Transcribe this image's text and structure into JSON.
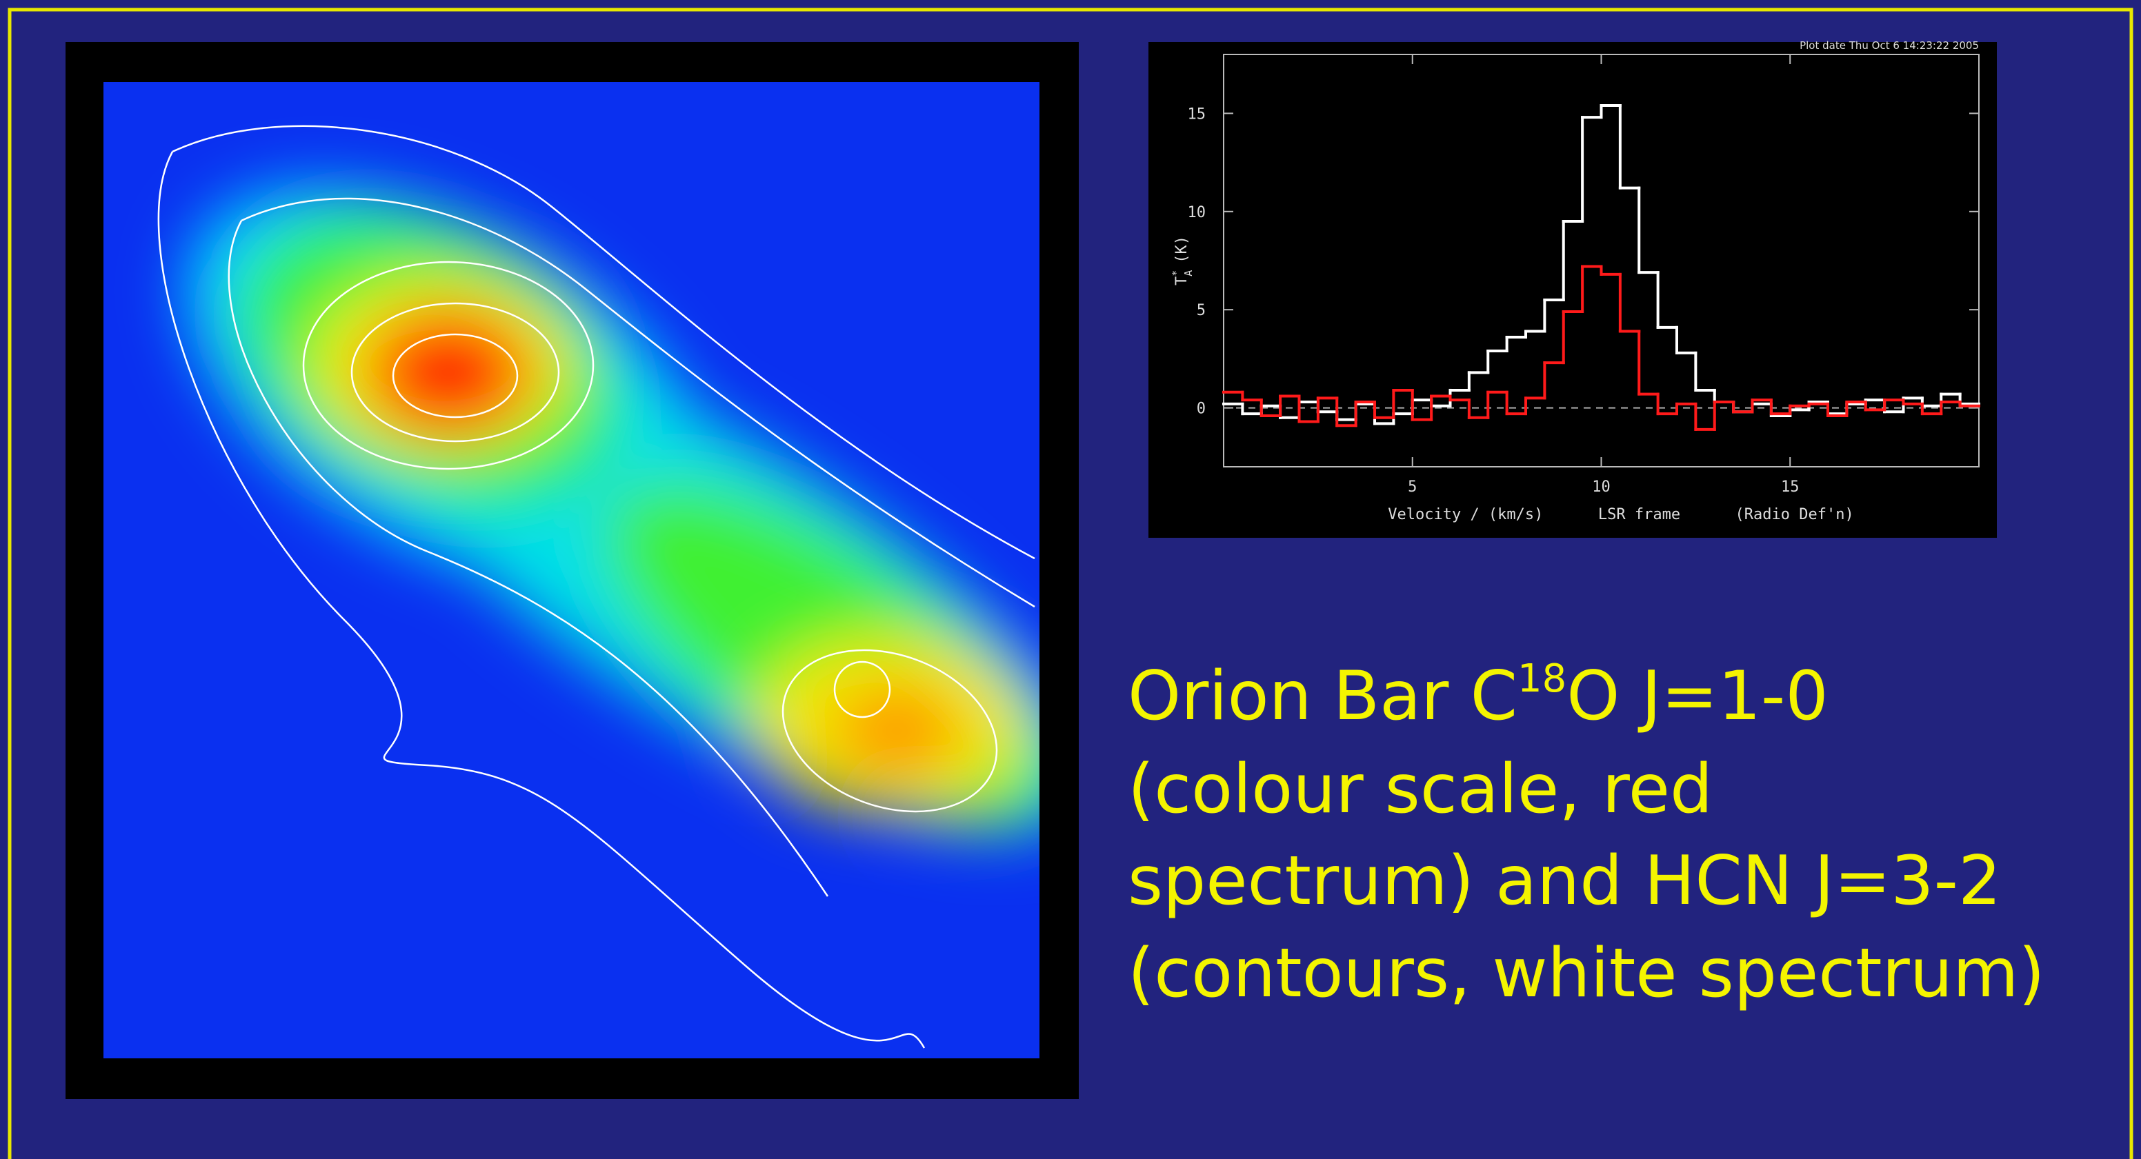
{
  "chart_data": {
    "type": "step",
    "plot_date": "Plot date Thu Oct  6 14:23:22 2005",
    "xlabel": "Velocity / (km/s)      LSR frame      (Radio Def'n)",
    "ylabel": {
      "symbol": "T",
      "sub": "A",
      "sup": "*",
      "unit": "(K)"
    },
    "xlim": [
      0,
      20
    ],
    "ylim": [
      -3,
      18
    ],
    "xticks": [
      5,
      10,
      15
    ],
    "yticks": [
      0,
      5,
      10,
      15
    ],
    "zero_line": true,
    "x": [
      0.25,
      0.75,
      1.25,
      1.75,
      2.25,
      2.75,
      3.25,
      3.75,
      4.25,
      4.75,
      5.25,
      5.75,
      6.25,
      6.75,
      7.25,
      7.75,
      8.25,
      8.75,
      9.25,
      9.75,
      10.25,
      10.75,
      11.25,
      11.75,
      12.25,
      12.75,
      13.25,
      13.75,
      14.25,
      14.75,
      15.25,
      15.75,
      16.25,
      16.75,
      17.25,
      17.75,
      18.25,
      18.75,
      19.25,
      19.75
    ],
    "series": [
      {
        "color": "#ffffff",
        "values": [
          0.2,
          -0.3,
          0.1,
          -0.5,
          0.3,
          -0.2,
          -0.6,
          0.2,
          -0.8,
          -0.3,
          0.4,
          0.1,
          0.9,
          1.8,
          2.9,
          3.6,
          3.9,
          5.5,
          9.5,
          14.8,
          15.4,
          11.2,
          6.9,
          4.1,
          2.8,
          0.9,
          0.3,
          -0.2,
          0.2,
          -0.4,
          -0.1,
          0.3,
          -0.3,
          0.2,
          0.4,
          -0.2,
          0.5,
          0.1,
          0.7,
          0.2
        ]
      },
      {
        "color": "#ff1a1a",
        "values": [
          0.8,
          0.4,
          -0.4,
          0.6,
          -0.7,
          0.5,
          -0.9,
          0.3,
          -0.5,
          0.9,
          -0.6,
          0.6,
          0.4,
          -0.5,
          0.8,
          -0.3,
          0.5,
          2.3,
          4.9,
          7.2,
          6.8,
          3.9,
          0.7,
          -0.3,
          0.2,
          -1.1,
          0.3,
          -0.2,
          0.4,
          -0.3,
          0.1,
          0.2,
          -0.4,
          0.3,
          -0.1,
          0.4,
          0.2,
          -0.3,
          0.3,
          0.1
        ]
      }
    ]
  },
  "caption": {
    "prefix": "Orion Bar C",
    "superscript": "18",
    "suffix": "O J=1-0",
    "lines": [
      "(colour scale, red",
      "spectrum) and HCN J=3-2",
      "(contours, white spectrum)"
    ]
  }
}
